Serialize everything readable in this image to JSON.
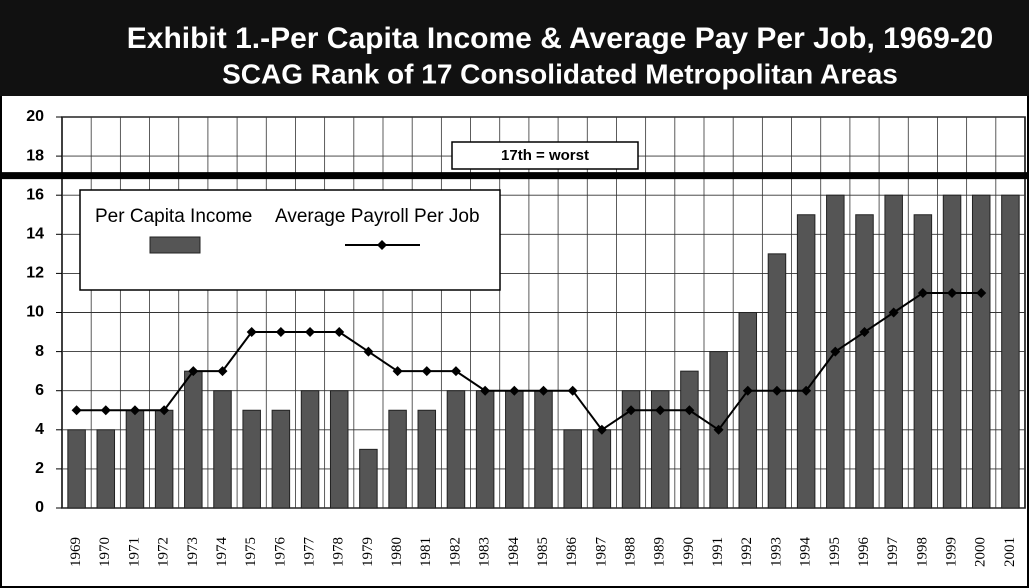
{
  "chart_data": {
    "type": "bar_line",
    "title": "Exhibit 1.-Per Capita Income & Average Pay Per Job, 1969-20",
    "subtitle": "SCAG Rank of 17 Consolidated Metropolitan Areas",
    "annotation": "17th = worst",
    "reference_line": 17,
    "categories": [
      "1969",
      "1970",
      "1971",
      "1972",
      "1973",
      "1974",
      "1975",
      "1976",
      "1977",
      "1978",
      "1979",
      "1980",
      "1981",
      "1982",
      "1983",
      "1984",
      "1985",
      "1986",
      "1987",
      "1988",
      "1989",
      "1990",
      "1991",
      "1992",
      "1993",
      "1994",
      "1995",
      "1996",
      "1997",
      "1998",
      "1999",
      "2000",
      "2001"
    ],
    "series": [
      {
        "name": "Per Capita Income",
        "color": "#555555",
        "kind": "bar",
        "values": [
          4,
          4,
          5,
          5,
          7,
          6,
          5,
          5,
          6,
          6,
          3,
          5,
          5,
          6,
          6,
          6,
          6,
          4,
          4,
          6,
          6,
          7,
          8,
          10,
          13,
          15,
          16,
          15,
          16,
          15,
          16,
          16,
          16
        ]
      },
      {
        "name": "Average Payroll Per Job",
        "color": "#000000",
        "kind": "line",
        "values": [
          5,
          5,
          5,
          5,
          7,
          7,
          9,
          9,
          9,
          9,
          8,
          7,
          7,
          7,
          6,
          6,
          6,
          6,
          4,
          5,
          5,
          5,
          4,
          6,
          6,
          6,
          8,
          9,
          10,
          11,
          11,
          11,
          null
        ]
      }
    ],
    "ylim": [
      0,
      20
    ],
    "yticks": [
      0,
      2,
      4,
      6,
      8,
      10,
      12,
      14,
      16,
      18,
      20
    ],
    "grid": true
  }
}
